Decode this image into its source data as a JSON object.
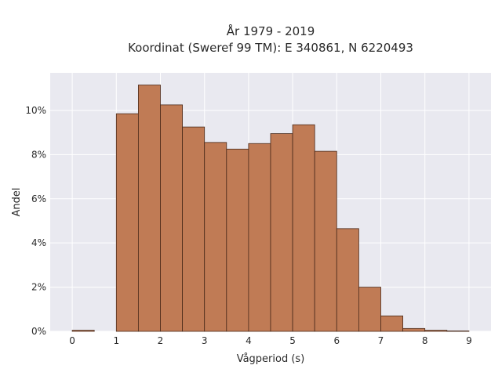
{
  "chart_data": {
    "type": "bar",
    "title_lines": [
      "År 1979 - 2019",
      "Koordinat (Sweref 99 TM): E 340861, N 6220493"
    ],
    "xlabel": "Vågperiod (s)",
    "ylabel": "Andel",
    "xlim": [
      -0.5,
      9.5
    ],
    "ylim": [
      0,
      11.7
    ],
    "bin_width": 0.5,
    "x_ticks": [
      0,
      1,
      2,
      3,
      4,
      5,
      6,
      7,
      8,
      9
    ],
    "y_ticks": [
      0,
      2,
      4,
      6,
      8,
      10
    ],
    "y_tick_labels": [
      "0%",
      "2%",
      "4%",
      "6%",
      "8%",
      "10%"
    ],
    "bins": [
      {
        "x0": 0.0,
        "x1": 0.5,
        "value": 0.05
      },
      {
        "x0": 1.0,
        "x1": 1.5,
        "value": 9.85
      },
      {
        "x0": 1.5,
        "x1": 2.0,
        "value": 11.15
      },
      {
        "x0": 2.0,
        "x1": 2.5,
        "value": 10.25
      },
      {
        "x0": 2.5,
        "x1": 3.0,
        "value": 9.25
      },
      {
        "x0": 3.0,
        "x1": 3.5,
        "value": 8.55
      },
      {
        "x0": 3.5,
        "x1": 4.0,
        "value": 8.25
      },
      {
        "x0": 4.0,
        "x1": 4.5,
        "value": 8.5
      },
      {
        "x0": 4.5,
        "x1": 5.0,
        "value": 8.95
      },
      {
        "x0": 5.0,
        "x1": 5.5,
        "value": 9.35
      },
      {
        "x0": 5.5,
        "x1": 6.0,
        "value": 8.15
      },
      {
        "x0": 6.0,
        "x1": 6.5,
        "value": 4.65
      },
      {
        "x0": 6.5,
        "x1": 7.0,
        "value": 2.0
      },
      {
        "x0": 7.0,
        "x1": 7.5,
        "value": 0.7
      },
      {
        "x0": 7.5,
        "x1": 8.0,
        "value": 0.13
      },
      {
        "x0": 8.0,
        "x1": 8.5,
        "value": 0.05
      },
      {
        "x0": 8.5,
        "x1": 9.0,
        "value": 0.02
      }
    ],
    "grid": true,
    "legend": "none",
    "colors": {
      "bar_fill": "#c07b55",
      "bar_stroke": "#4a2a1a",
      "plot_background": "#e9e9f0",
      "grid": "#ffffff"
    }
  }
}
